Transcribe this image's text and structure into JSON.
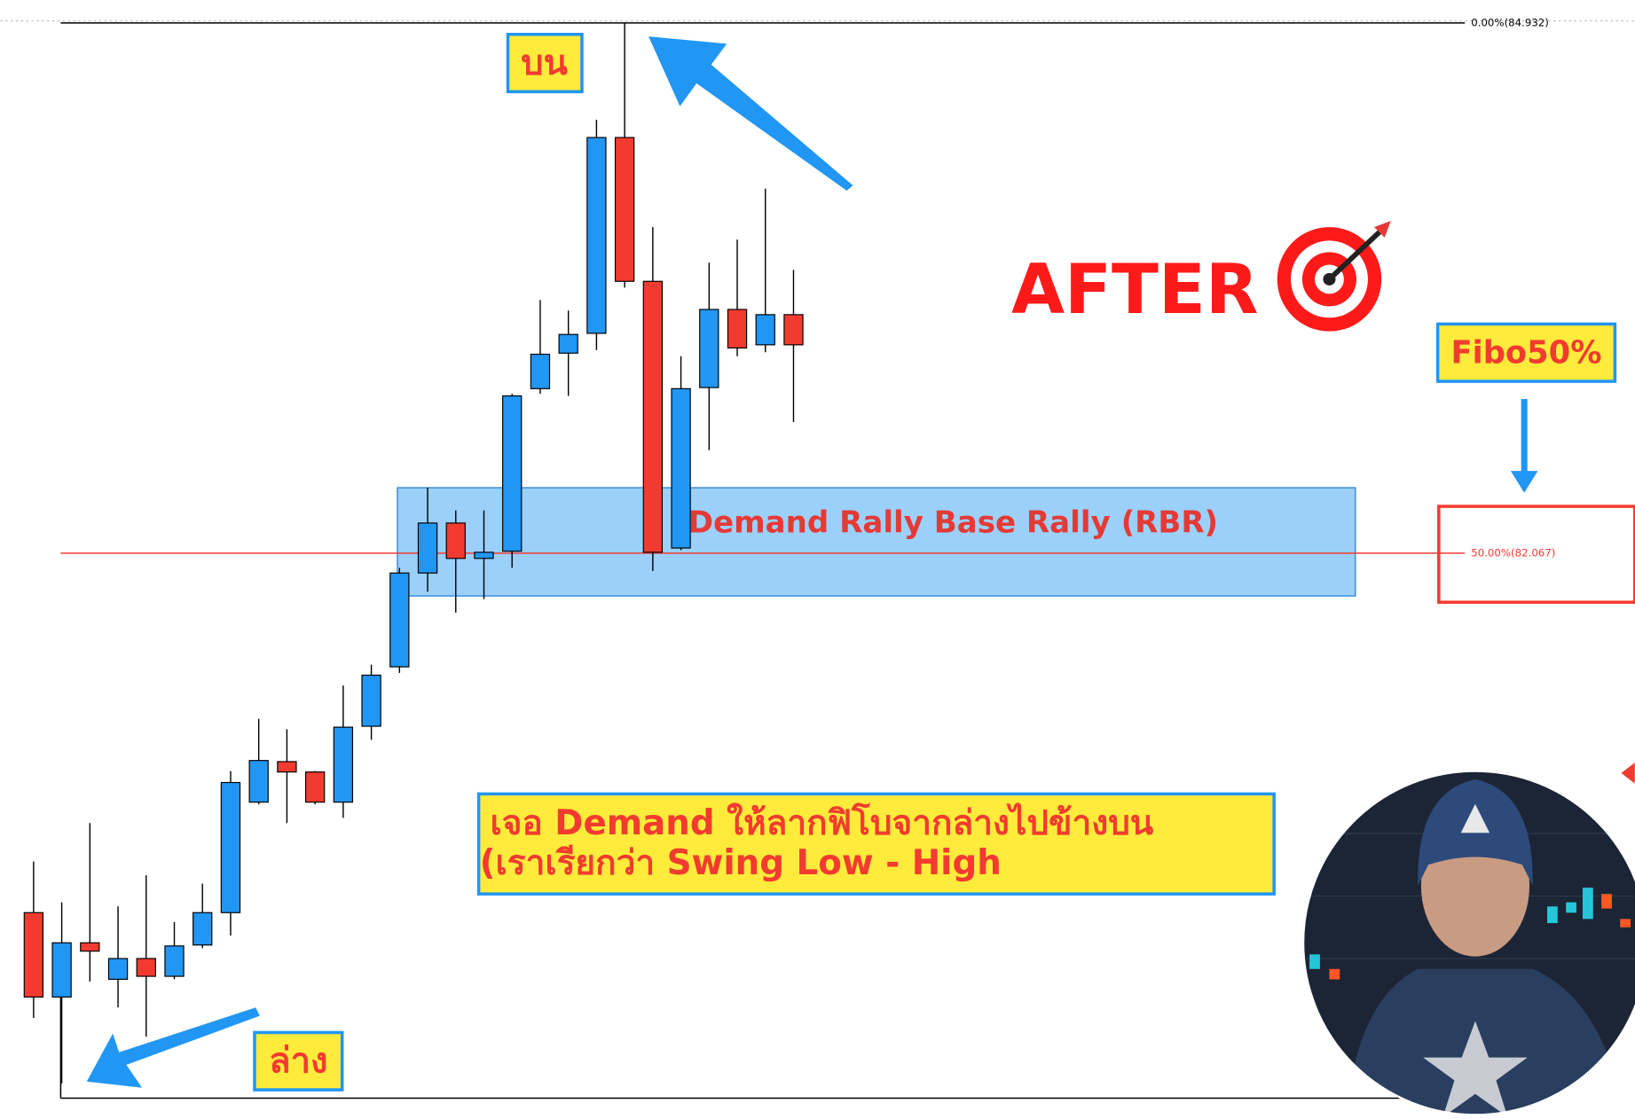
{
  "chart_data": {
    "type": "candlestick",
    "ylim": [
      79.01,
      85.056
    ],
    "up_color": "#2196f3",
    "down_color": "#f23b30",
    "candles": [
      {
        "open": 80.125,
        "high": 80.401,
        "low": 79.556,
        "close": 79.669
      },
      {
        "open": 79.669,
        "high": 80.181,
        "low": 79.202,
        "close": 79.962
      },
      {
        "open": 79.962,
        "high": 80.609,
        "low": 79.753,
        "close": 79.917
      },
      {
        "open": 79.765,
        "high": 80.159,
        "low": 79.613,
        "close": 79.877
      },
      {
        "open": 79.877,
        "high": 80.327,
        "low": 79.455,
        "close": 79.781
      },
      {
        "open": 79.781,
        "high": 80.074,
        "low": 79.765,
        "close": 79.945
      },
      {
        "open": 79.95,
        "high": 80.282,
        "low": 79.933,
        "close": 80.125
      },
      {
        "open": 80.125,
        "high": 80.89,
        "low": 80.001,
        "close": 80.828
      },
      {
        "open": 80.722,
        "high": 81.172,
        "low": 80.71,
        "close": 80.947
      },
      {
        "open": 80.941,
        "high": 81.116,
        "low": 80.609,
        "close": 80.885
      },
      {
        "open": 80.885,
        "high": 80.89,
        "low": 80.71,
        "close": 80.722
      },
      {
        "open": 80.722,
        "high": 81.352,
        "low": 80.637,
        "close": 81.127
      },
      {
        "open": 81.132,
        "high": 81.465,
        "low": 81.059,
        "close": 81.408
      },
      {
        "open": 81.453,
        "high": 81.988,
        "low": 81.42,
        "close": 81.96
      },
      {
        "open": 81.96,
        "high": 82.421,
        "low": 81.859,
        "close": 82.23
      },
      {
        "open": 82.23,
        "high": 82.298,
        "low": 81.746,
        "close": 82.039
      },
      {
        "open": 82.039,
        "high": 82.298,
        "low": 81.819,
        "close": 82.072
      },
      {
        "open": 82.078,
        "high": 82.928,
        "low": 81.988,
        "close": 82.917
      },
      {
        "open": 82.956,
        "high": 83.435,
        "low": 82.928,
        "close": 83.142
      },
      {
        "open": 83.148,
        "high": 83.378,
        "low": 82.917,
        "close": 83.249
      },
      {
        "open": 83.255,
        "high": 84.409,
        "low": 83.164,
        "close": 84.313
      },
      {
        "open": 84.313,
        "high": 84.932,
        "low": 83.502,
        "close": 83.536
      },
      {
        "open": 83.536,
        "high": 83.829,
        "low": 81.971,
        "close": 82.072
      },
      {
        "open": 82.095,
        "high": 83.131,
        "low": 82.084,
        "close": 82.956
      },
      {
        "open": 82.962,
        "high": 83.637,
        "low": 82.624,
        "close": 83.384
      },
      {
        "open": 83.384,
        "high": 83.761,
        "low": 83.131,
        "close": 83.176
      },
      {
        "open": 83.193,
        "high": 84.037,
        "low": 83.153,
        "close": 83.356
      },
      {
        "open": 83.356,
        "high": 83.598,
        "low": 82.776,
        "close": 83.193
      }
    ],
    "fib_levels": [
      {
        "value": 84.932,
        "label": "0.00%(84.932)",
        "color": "#000000"
      },
      {
        "value": 82.067,
        "label": "50.00%(82.067)",
        "color": "#f23b30"
      }
    ],
    "zone": {
      "label": "Demand Rally Base Rally (RBR)",
      "top": 82.421,
      "bottom": 81.836
    },
    "annotations": {
      "top": "บน",
      "bottom": "ล่าง",
      "after": "AFTER",
      "fibo": "Fibo50%",
      "note_line1": "เจอ Demand ให้ลากฟิโบจากล่างไปข้างบน",
      "note_line2": "(เราเรียกว่า Swing Low - High"
    }
  }
}
